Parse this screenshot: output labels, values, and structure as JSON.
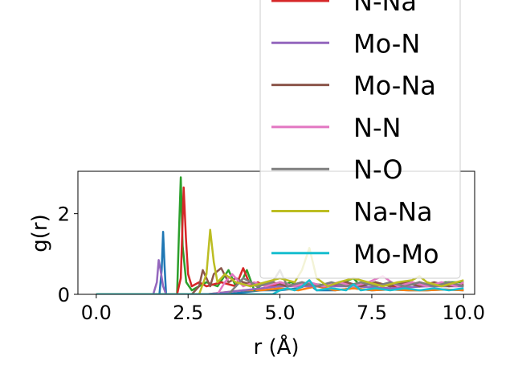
{
  "chart_data": {
    "type": "line",
    "xlabel": "r (Å)",
    "ylabel": "g(r)",
    "xlim": [
      -0.5,
      10.3
    ],
    "ylim": [
      0,
      3.05
    ],
    "x_ticks": [
      "0.0",
      "2.5",
      "5.0",
      "7.5",
      "10.0"
    ],
    "x_tick_values": [
      0,
      2.5,
      5,
      7.5,
      10
    ],
    "y_ticks": [
      "0",
      "2"
    ],
    "y_tick_values": [
      0,
      2
    ],
    "grid": false,
    "legend_position": "upper-right",
    "series": [
      {
        "name": "",
        "color": "#1f77b4",
        "x": [
          0,
          1.5,
          1.72,
          1.78,
          1.82,
          1.86,
          1.9,
          2.0,
          2.5,
          3.0,
          3.5,
          4.0,
          4.5,
          5.0,
          5.5,
          5.8,
          6.0,
          6.5,
          7.0,
          7.5,
          8.0,
          8.5,
          9.0,
          9.5,
          10.0
        ],
        "y": [
          0,
          0,
          0,
          0.6,
          1.55,
          0.7,
          0,
          0,
          0,
          0,
          0,
          0.05,
          0.1,
          0.1,
          0.15,
          0.25,
          0.1,
          0.1,
          0.15,
          0.1,
          0.12,
          0.1,
          0.1,
          0.12,
          0.1
        ]
      },
      {
        "name": "",
        "color": "#ff7f0e",
        "x": [
          0,
          3.0,
          3.5,
          4.0,
          4.5,
          5.0,
          5.5,
          6.0,
          6.5,
          7.0,
          7.5,
          8.0,
          8.5,
          9.0,
          9.5,
          10.0
        ],
        "y": [
          0,
          0,
          0.05,
          0.1,
          0.1,
          0.15,
          0.1,
          0.2,
          0.1,
          0.15,
          0.1,
          0.12,
          0.1,
          0.1,
          0.12,
          0.1
        ]
      },
      {
        "name": "",
        "color": "#2ca02c",
        "x": [
          0,
          2.1,
          2.2,
          2.25,
          2.3,
          2.35,
          2.45,
          2.6,
          2.8,
          3.0,
          3.3,
          3.6,
          3.8,
          4.0,
          4.1,
          4.3,
          4.6,
          5.0,
          5.3,
          5.6,
          6.0,
          6.5,
          7.0,
          7.2,
          7.6,
          8.0,
          8.5,
          9.0,
          9.5,
          10.0
        ],
        "y": [
          0,
          0,
          0,
          1.5,
          2.9,
          1.2,
          0.3,
          0.1,
          0.2,
          0.3,
          0.2,
          0.6,
          0.2,
          0.4,
          0.6,
          0.1,
          0.3,
          0.2,
          0.3,
          0.2,
          0.25,
          0.2,
          0.4,
          0.2,
          0.3,
          0.2,
          0.3,
          0.2,
          0.3,
          0.3
        ]
      },
      {
        "name": "N-Na",
        "color": "#d62728",
        "x": [
          0,
          2.2,
          2.3,
          2.38,
          2.44,
          2.5,
          2.6,
          2.8,
          3.0,
          3.4,
          3.8,
          4.0,
          4.2,
          4.4,
          4.6,
          4.8,
          5.0,
          5.4,
          5.8,
          6.0,
          6.4,
          6.8,
          7.2,
          7.6,
          8.0,
          8.4,
          8.8,
          9.2,
          9.6,
          10.0
        ],
        "y": [
          0,
          0,
          0.4,
          2.65,
          1.4,
          0.5,
          0.2,
          0.3,
          0.2,
          0.3,
          0.2,
          0.65,
          0.2,
          0.3,
          0.2,
          0.2,
          0.3,
          0.2,
          0.3,
          0.2,
          0.2,
          0.3,
          0.2,
          0.3,
          0.2,
          0.2,
          0.3,
          0.2,
          0.3,
          0.2
        ]
      },
      {
        "name": "Mo-N",
        "color": "#9467bd",
        "x": [
          0,
          1.55,
          1.65,
          1.7,
          1.75,
          1.82,
          1.9,
          2.0,
          3.0,
          4.0,
          5.0,
          6.0,
          7.0,
          8.0,
          9.0,
          10.0
        ],
        "y": [
          0,
          0,
          0.3,
          0.85,
          0.6,
          0.2,
          0,
          0,
          0,
          0.1,
          0.2,
          0.2,
          0.2,
          0.15,
          0.2,
          0.2
        ]
      },
      {
        "name": "Mo-Na",
        "color": "#8c564b",
        "x": [
          0,
          2.6,
          2.8,
          2.9,
          3.0,
          3.1,
          3.2,
          3.4,
          3.6,
          3.8,
          4.0,
          4.4,
          4.8,
          5.2,
          5.6,
          6.0,
          6.4,
          6.8,
          7.2,
          7.6,
          8.0,
          8.4,
          8.8,
          9.2,
          9.6,
          10.0
        ],
        "y": [
          0,
          0,
          0.2,
          0.6,
          0.4,
          0.2,
          0.5,
          0.65,
          0.3,
          0.4,
          0.3,
          0.2,
          0.3,
          0.2,
          0.3,
          0.2,
          0.25,
          0.3,
          0.2,
          0.3,
          0.2,
          0.3,
          0.2,
          0.3,
          0.2,
          0.25
        ]
      },
      {
        "name": "N-N",
        "color": "#e377c2",
        "x": [
          0,
          3.3,
          3.5,
          3.7,
          4.0,
          4.3,
          4.6,
          5.0,
          5.4,
          5.8,
          6.2,
          6.6,
          7.0,
          7.4,
          7.8,
          8.2,
          8.6,
          9.0,
          9.4,
          9.8,
          10.0
        ],
        "y": [
          0,
          0,
          0.3,
          0.5,
          0.2,
          0.3,
          0.2,
          0.3,
          0.2,
          0.3,
          0.2,
          0.3,
          0.2,
          0.3,
          0.45,
          0.2,
          0.3,
          0.2,
          0.3,
          0.2,
          0.3
        ]
      },
      {
        "name": "N-O",
        "color": "#7f7f7f",
        "x": [
          0,
          3.6,
          3.8,
          4.0,
          4.4,
          4.8,
          5.0,
          5.2,
          5.6,
          6.0,
          6.4,
          6.8,
          7.2,
          7.6,
          8.0,
          8.4,
          8.8,
          9.2,
          9.6,
          10.0
        ],
        "y": [
          0,
          0,
          0.2,
          0.4,
          0.2,
          0.3,
          0.6,
          0.2,
          0.3,
          0.2,
          0.3,
          0.2,
          0.3,
          0.2,
          0.3,
          0.2,
          0.3,
          0.2,
          0.3,
          0.2
        ]
      },
      {
        "name": "Na-Na",
        "color": "#bcbd22",
        "x": [
          0,
          2.8,
          3.0,
          3.1,
          3.2,
          3.3,
          3.5,
          3.8,
          4.2,
          4.6,
          5.0,
          5.4,
          5.6,
          5.8,
          6.0,
          6.3,
          6.6,
          7.0,
          7.4,
          7.8,
          8.2,
          8.6,
          8.8,
          9.0,
          9.4,
          9.8,
          10.0
        ],
        "y": [
          0,
          0,
          0.5,
          1.6,
          0.8,
          0.3,
          0.5,
          0.3,
          0.2,
          0.3,
          0.4,
          0.3,
          0.6,
          1.15,
          0.4,
          0.2,
          0.3,
          0.4,
          0.3,
          0.2,
          0.3,
          0.35,
          0.45,
          0.3,
          0.2,
          0.3,
          0.35
        ]
      },
      {
        "name": "Mo-Mo",
        "color": "#17becf",
        "x": [
          0,
          4.8,
          5.0,
          5.2,
          5.4,
          5.6,
          5.8,
          6.0,
          6.4,
          6.8,
          7.0,
          7.2,
          7.6,
          8.0,
          8.4,
          8.8,
          9.2,
          9.6,
          10.0
        ],
        "y": [
          0,
          0,
          0.1,
          0.15,
          0.1,
          0.2,
          0.35,
          0.1,
          0.15,
          0.1,
          0.25,
          0.1,
          0.15,
          0.1,
          0.15,
          0.1,
          0.15,
          0.1,
          0.15
        ]
      }
    ],
    "legend": [
      {
        "label": "N-Na",
        "color": "#d62728"
      },
      {
        "label": "Mo-N",
        "color": "#9467bd"
      },
      {
        "label": "Mo-Na",
        "color": "#8c564b"
      },
      {
        "label": "N-N",
        "color": "#e377c2"
      },
      {
        "label": "N-O",
        "color": "#7f7f7f"
      },
      {
        "label": "Na-Na",
        "color": "#bcbd22"
      },
      {
        "label": "Mo-Mo",
        "color": "#17becf"
      }
    ]
  }
}
